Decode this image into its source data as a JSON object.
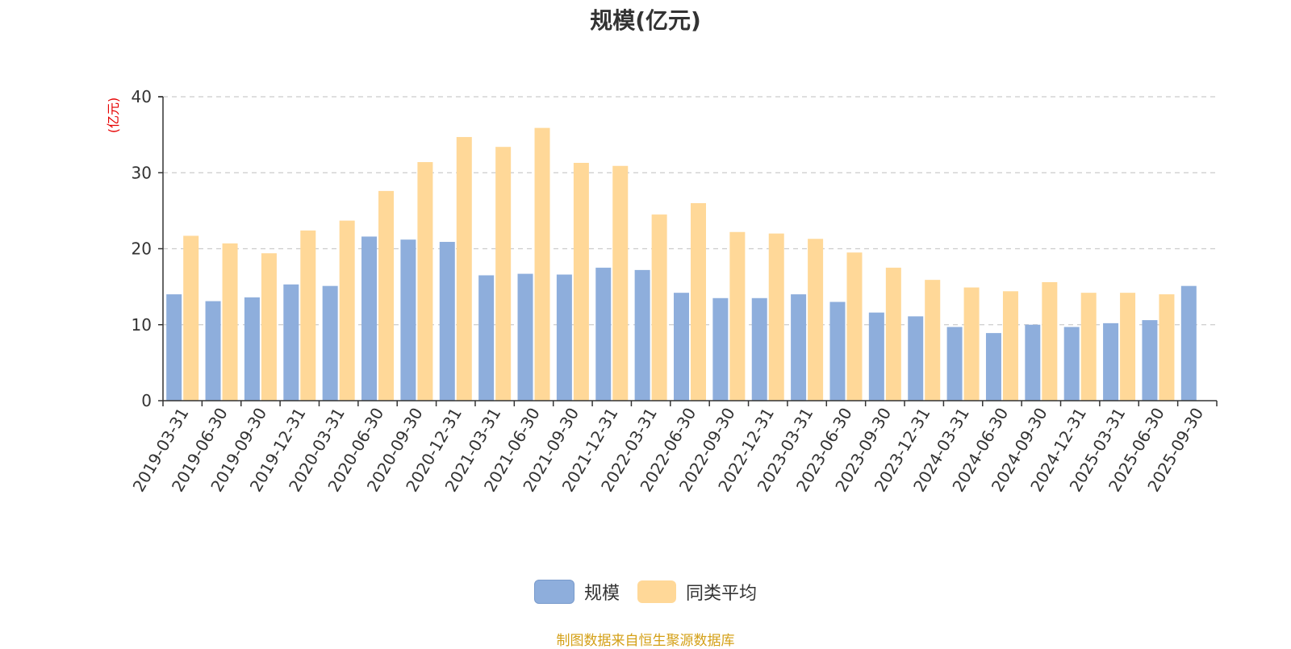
{
  "chart_data": {
    "type": "bar",
    "title": "规模(亿元)",
    "ylabel": "(亿元)",
    "xlabel": "",
    "ylim": [
      0,
      40
    ],
    "yticks": [
      0,
      10,
      20,
      30,
      40
    ],
    "grid": true,
    "legend_position": "bottom",
    "categories": [
      "2019-03-31",
      "2019-06-30",
      "2019-09-30",
      "2019-12-31",
      "2020-03-31",
      "2020-06-30",
      "2020-09-30",
      "2020-12-31",
      "2021-03-31",
      "2021-06-30",
      "2021-09-30",
      "2021-12-31",
      "2022-03-31",
      "2022-06-30",
      "2022-09-30",
      "2022-12-31",
      "2023-03-31",
      "2023-06-30",
      "2023-09-30",
      "2023-12-31",
      "2024-03-31",
      "2024-06-30",
      "2024-09-30",
      "2024-12-31",
      "2025-03-31",
      "2025-06-30",
      "2025-09-30"
    ],
    "series": [
      {
        "name": "规模",
        "color": "#8eaedc",
        "values": [
          14.0,
          13.1,
          13.6,
          15.3,
          15.1,
          21.6,
          21.2,
          20.9,
          16.5,
          16.7,
          16.6,
          17.5,
          17.2,
          14.2,
          13.5,
          13.5,
          14.0,
          13.0,
          11.6,
          11.1,
          9.7,
          8.9,
          10.0,
          9.7,
          10.2,
          10.6,
          15.1
        ]
      },
      {
        "name": "同类平均",
        "color": "#ffd898",
        "values": [
          21.7,
          20.7,
          19.4,
          22.4,
          23.7,
          27.6,
          31.4,
          34.7,
          33.4,
          35.9,
          31.3,
          30.9,
          24.5,
          26.0,
          22.2,
          22.0,
          21.3,
          19.5,
          17.5,
          15.9,
          14.9,
          14.4,
          15.6,
          14.2,
          14.2,
          14.0,
          null
        ]
      }
    ]
  },
  "source_note": "制图数据来自恒生聚源数据库",
  "colors": {
    "axis": "#333333",
    "grid": "#cccccc",
    "ylabel": "#e60000"
  }
}
